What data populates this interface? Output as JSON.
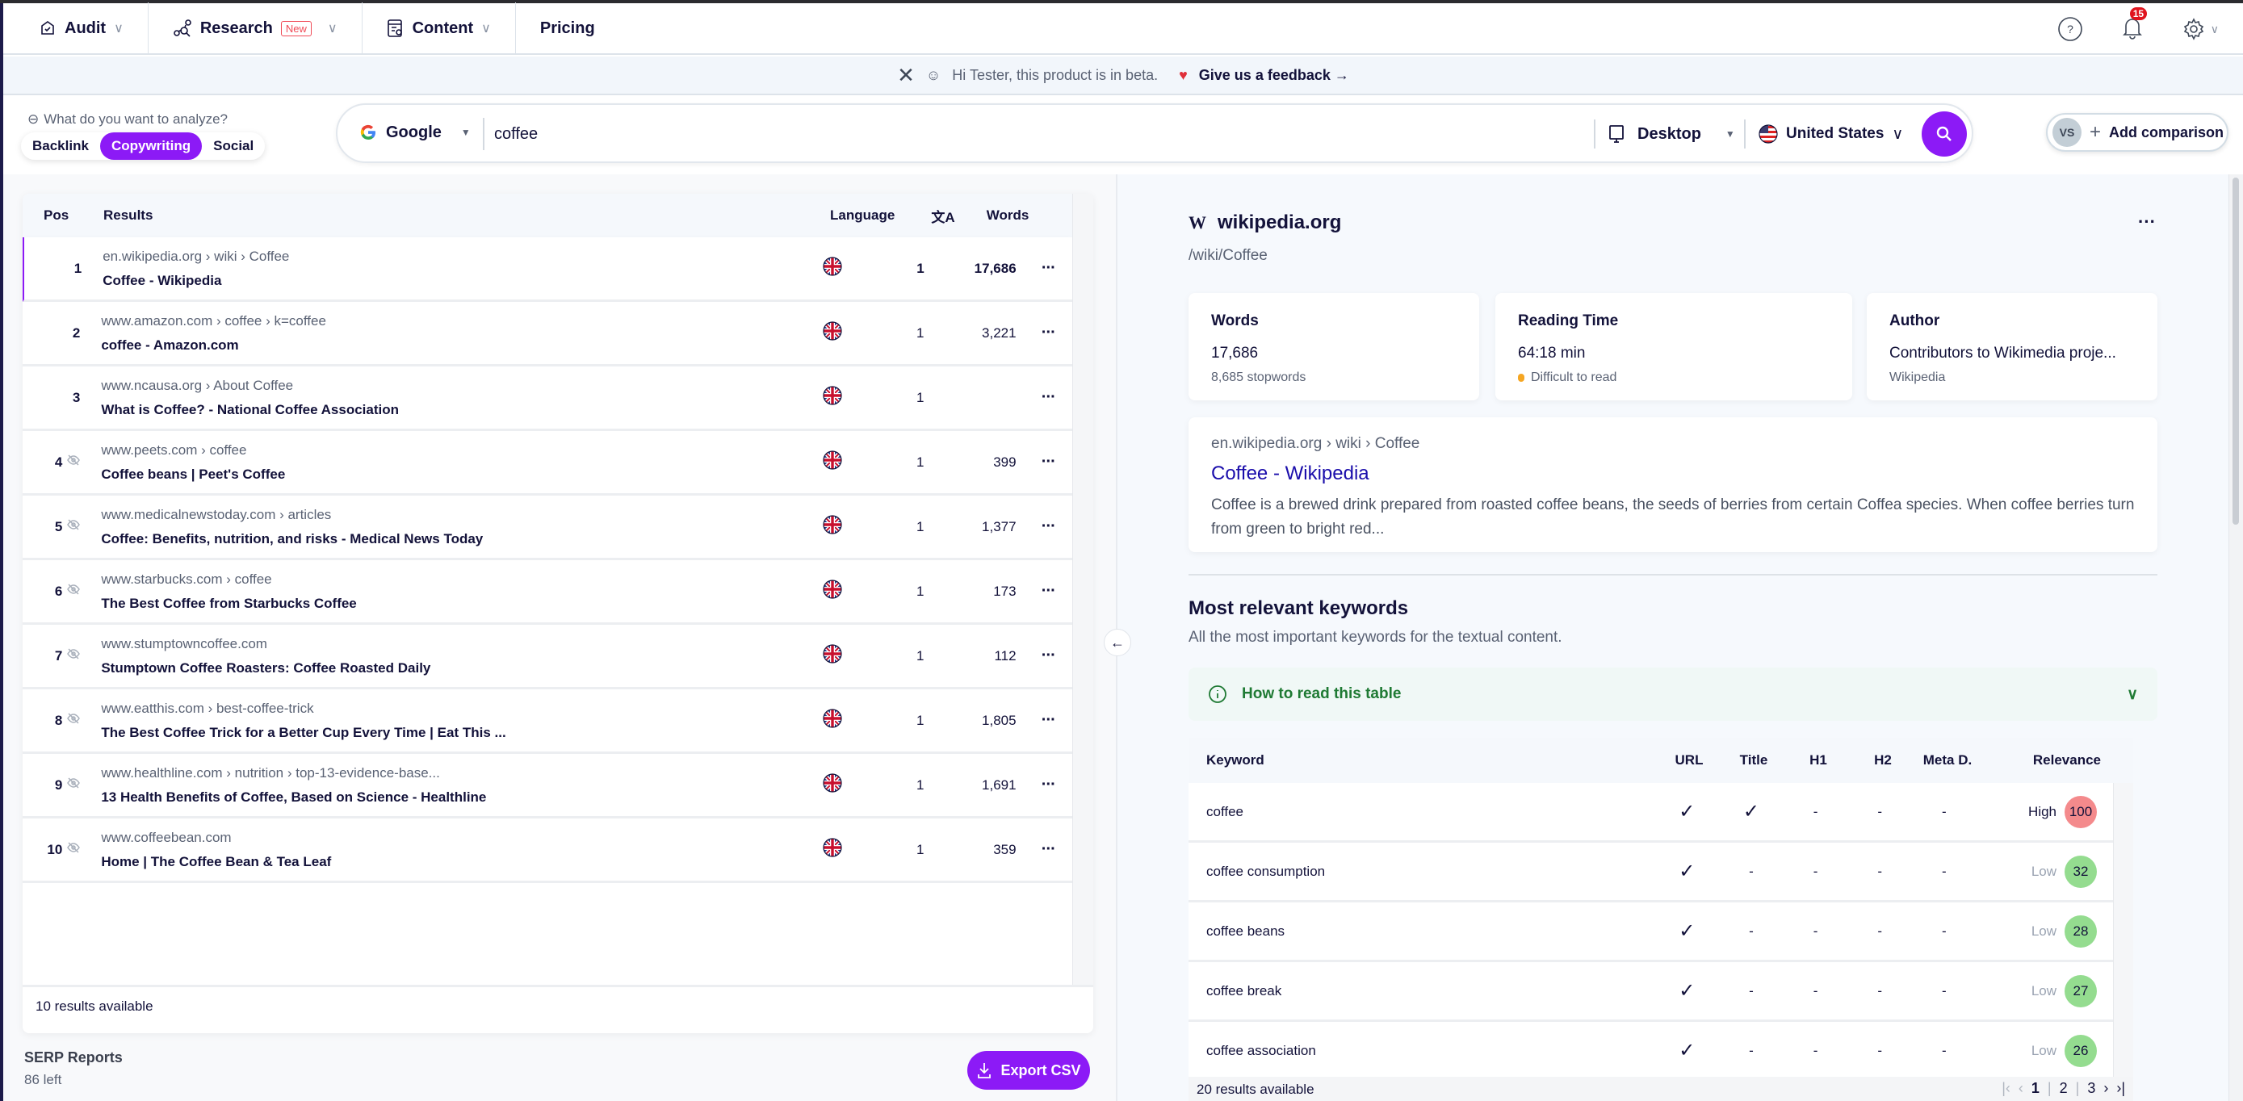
{
  "nav": {
    "items": [
      {
        "label": "Audit",
        "icon": "audit-icon",
        "dropdown": true
      },
      {
        "label": "Research",
        "icon": "research-icon",
        "badge": "New",
        "dropdown": true
      },
      {
        "label": "Content",
        "icon": "content-icon",
        "dropdown": true
      },
      {
        "label": "Pricing"
      }
    ],
    "notifications_count": "15"
  },
  "beta_banner": {
    "message": "Hi Tester, this product is in beta.",
    "feedback_link": "Give us a feedback"
  },
  "analyze": {
    "label": "What do you want to analyze?",
    "modes": [
      "Backlink",
      "Copywriting",
      "Social"
    ],
    "active_mode": "Copywriting"
  },
  "search": {
    "engine": "Google",
    "query": "coffee",
    "device": "Desktop",
    "country": "United States"
  },
  "compare": {
    "avatar": "VS",
    "label": "Add comparison"
  },
  "results": {
    "headers": {
      "pos": "Pos",
      "results": "Results",
      "language": "Language",
      "words": "Words"
    },
    "rows": [
      {
        "pos": "1",
        "hidden": false,
        "crumb": "en.wikipedia.org › wiki › Coffee",
        "title": "Coffee - Wikipedia",
        "lang_count": "1",
        "words": "17,686"
      },
      {
        "pos": "2",
        "hidden": false,
        "crumb": "www.amazon.com › coffee › k=coffee",
        "title": "coffee - Amazon.com",
        "lang_count": "1",
        "words": "3,221"
      },
      {
        "pos": "3",
        "hidden": false,
        "crumb": "www.ncausa.org › About Coffee",
        "title": "What is Coffee? - National Coffee Association",
        "lang_count": "1",
        "words": ""
      },
      {
        "pos": "4",
        "hidden": true,
        "crumb": "www.peets.com › coffee",
        "title": "Coffee beans | Peet's Coffee",
        "lang_count": "1",
        "words": "399"
      },
      {
        "pos": "5",
        "hidden": true,
        "crumb": "www.medicalnewstoday.com › articles",
        "title": "Coffee: Benefits, nutrition, and risks - Medical News Today",
        "lang_count": "1",
        "words": "1,377"
      },
      {
        "pos": "6",
        "hidden": true,
        "crumb": "www.starbucks.com › coffee",
        "title": "The Best Coffee from Starbucks Coffee",
        "lang_count": "1",
        "words": "173"
      },
      {
        "pos": "7",
        "hidden": true,
        "crumb": "www.stumptowncoffee.com",
        "title": "Stumptown Coffee Roasters: Coffee Roasted Daily",
        "lang_count": "1",
        "words": "112"
      },
      {
        "pos": "8",
        "hidden": true,
        "crumb": "www.eatthis.com › best-coffee-trick",
        "title": "The Best Coffee Trick for a Better Cup Every Time | Eat This ...",
        "lang_count": "1",
        "words": "1,805"
      },
      {
        "pos": "9",
        "hidden": true,
        "crumb": "www.healthline.com › nutrition › top-13-evidence-base...",
        "title": "13 Health Benefits of Coffee, Based on Science - Healthline",
        "lang_count": "1",
        "words": "1,691"
      },
      {
        "pos": "10",
        "hidden": true,
        "crumb": "www.coffeebean.com",
        "title": "Home | The Coffee Bean & Tea Leaf",
        "lang_count": "1",
        "words": "359"
      }
    ],
    "footer": "10 results available"
  },
  "serp_reports": {
    "label": "SERP Reports",
    "remaining": "86 left"
  },
  "export_label": "Export CSV",
  "detail": {
    "site": "wikipedia.org",
    "path": "/wiki/Coffee",
    "stats": {
      "words": {
        "label": "Words",
        "value": "17,686",
        "sub": "8,685 stopwords"
      },
      "reading": {
        "label": "Reading Time",
        "value": "64:18 min",
        "sub": "Difficult to read"
      },
      "author": {
        "label": "Author",
        "value": "Contributors to Wikimedia proje...",
        "sub": "Wikipedia"
      }
    },
    "preview": {
      "crumb": "en.wikipedia.org › wiki › Coffee",
      "title": "Coffee - Wikipedia",
      "description": "Coffee is a brewed drink prepared from roasted coffee beans, the seeds of berries from certain Coffea species. When coffee berries turn from green to bright red..."
    },
    "keywords": {
      "title": "Most relevant keywords",
      "subtitle": "All the most important keywords for the textual content.",
      "howto": "How to read this table",
      "headers": {
        "keyword": "Keyword",
        "url": "URL",
        "title": "Title",
        "h1": "H1",
        "h2": "H2",
        "meta": "Meta D.",
        "relevance": "Relevance"
      },
      "rows": [
        {
          "keyword": "coffee",
          "url": true,
          "title": true,
          "h1": "-",
          "h2": "-",
          "meta": "-",
          "level": "High",
          "score": "100",
          "color": "#f48a8c"
        },
        {
          "keyword": "coffee consumption",
          "url": true,
          "title": false,
          "h1": "-",
          "h2": "-",
          "meta": "-",
          "level": "Low",
          "score": "32",
          "color": "#94dc8f"
        },
        {
          "keyword": "coffee beans",
          "url": true,
          "title": false,
          "h1": "-",
          "h2": "-",
          "meta": "-",
          "level": "Low",
          "score": "28",
          "color": "#94dc8f"
        },
        {
          "keyword": "coffee break",
          "url": true,
          "title": false,
          "h1": "-",
          "h2": "-",
          "meta": "-",
          "level": "Low",
          "score": "27",
          "color": "#94dc8f"
        },
        {
          "keyword": "coffee association",
          "url": true,
          "title": false,
          "h1": "-",
          "h2": "-",
          "meta": "-",
          "level": "Low",
          "score": "26",
          "color": "#94dc8f"
        }
      ],
      "footer": "20 results available",
      "pages": [
        "1",
        "2",
        "3"
      ],
      "current_page": "1"
    }
  },
  "colors": {
    "accent": "#8c1af6",
    "link": "#1a0dab",
    "check": "#6cc02c",
    "howto_green": "#1f7a34"
  }
}
